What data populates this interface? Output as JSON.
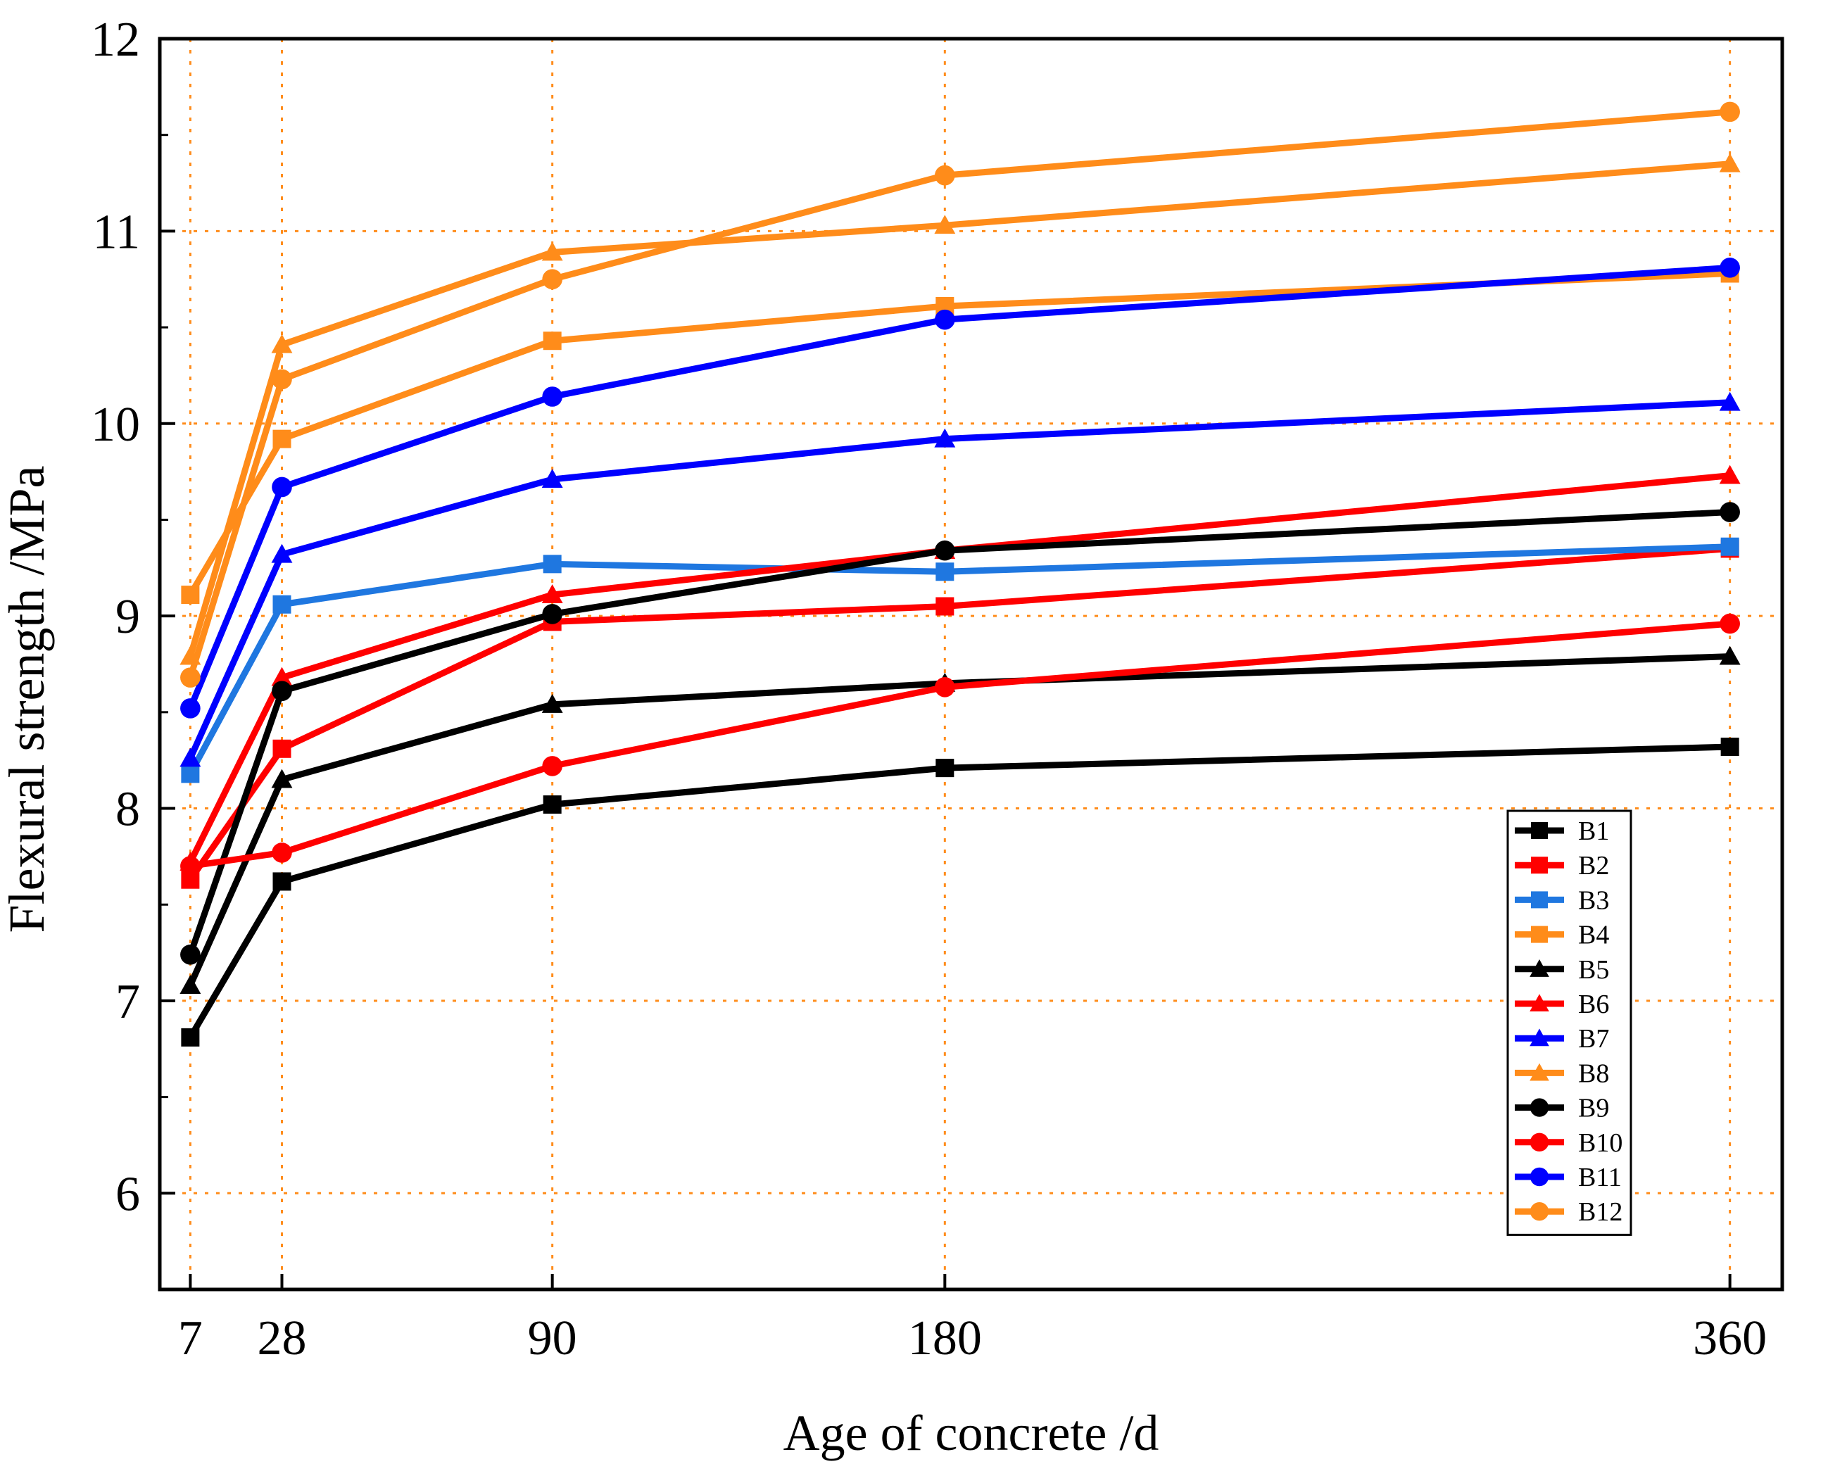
{
  "chart_data": {
    "type": "line",
    "xlabel": "Age of concrete /d",
    "ylabel": "Flexural strength /MPa",
    "x": [
      7,
      28,
      90,
      180,
      360
    ],
    "x_ticks": [
      "7",
      "28",
      "90",
      "180",
      "360"
    ],
    "y_ticks": [
      "6",
      "7",
      "8",
      "9",
      "10",
      "11",
      "12"
    ],
    "xlim": [
      0,
      372
    ],
    "ylim": [
      5.5,
      12
    ],
    "grid": true,
    "grid_color": "#ff8c1a",
    "legend_position": "bottom-right",
    "series": [
      {
        "name": "B1",
        "color": "#000000",
        "marker": "square",
        "values": [
          6.81,
          7.62,
          8.02,
          8.21,
          8.32
        ]
      },
      {
        "name": "B2",
        "color": "#ff0000",
        "marker": "square",
        "values": [
          7.63,
          8.31,
          8.97,
          9.05,
          9.35
        ]
      },
      {
        "name": "B3",
        "color": "#1f77e0",
        "marker": "square",
        "values": [
          8.18,
          9.06,
          9.27,
          9.23,
          9.36
        ]
      },
      {
        "name": "B4",
        "color": "#ff8c1a",
        "marker": "square",
        "values": [
          9.11,
          9.92,
          10.43,
          10.61,
          10.78
        ]
      },
      {
        "name": "B5",
        "color": "#000000",
        "marker": "triangle",
        "values": [
          7.08,
          8.15,
          8.54,
          8.65,
          8.79
        ]
      },
      {
        "name": "B6",
        "color": "#ff0000",
        "marker": "triangle",
        "values": [
          7.72,
          8.68,
          9.11,
          9.34,
          9.73
        ]
      },
      {
        "name": "B7",
        "color": "#0000ff",
        "marker": "triangle",
        "values": [
          8.26,
          9.32,
          9.71,
          9.92,
          10.11
        ]
      },
      {
        "name": "B8",
        "color": "#ff8c1a",
        "marker": "triangle",
        "values": [
          8.79,
          10.41,
          10.89,
          11.03,
          11.35
        ]
      },
      {
        "name": "B9",
        "color": "#000000",
        "marker": "circle",
        "values": [
          7.24,
          8.61,
          9.01,
          9.34,
          9.54
        ]
      },
      {
        "name": "B10",
        "color": "#ff0000",
        "marker": "circle",
        "values": [
          7.7,
          7.77,
          8.22,
          8.63,
          8.96
        ]
      },
      {
        "name": "B11",
        "color": "#0000ff",
        "marker": "circle",
        "values": [
          8.52,
          9.67,
          10.14,
          10.54,
          10.81
        ]
      },
      {
        "name": "B12",
        "color": "#ff8c1a",
        "marker": "circle",
        "values": [
          8.68,
          10.23,
          10.75,
          11.29,
          11.62
        ]
      }
    ]
  }
}
